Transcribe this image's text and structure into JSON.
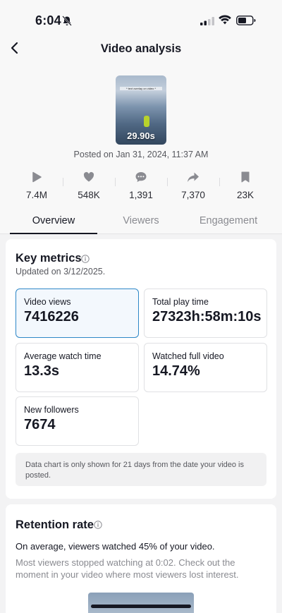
{
  "status_bar": {
    "time": "6:04"
  },
  "nav": {
    "title": "Video analysis"
  },
  "video": {
    "duration": "29.90s",
    "caption": "* text overlay on video *",
    "posted": "Posted on Jan 31, 2024, 11:37 AM"
  },
  "stats": {
    "plays": "7.4M",
    "likes": "548K",
    "comments": "1,391",
    "shares": "7,370",
    "saves": "23K"
  },
  "tabs": [
    "Overview",
    "Viewers",
    "Engagement"
  ],
  "key_metrics": {
    "title": "Key metrics",
    "updated": "Updated on 3/12/2025.",
    "items": [
      {
        "label": "Video views",
        "value": "7416226"
      },
      {
        "label": "Total play time",
        "value": "27323h:58m:10s"
      },
      {
        "label": "Average watch time",
        "value": "13.3s"
      },
      {
        "label": "Watched full video",
        "value": "14.74%"
      },
      {
        "label": "New followers",
        "value": "7674"
      }
    ],
    "note": "Data chart is only shown for 21 days from the date your video is posted."
  },
  "retention": {
    "title": "Retention rate",
    "summary": "On average, viewers watched 45% of your video.",
    "detail": "Most viewers stopped watching at 0:02. Check out the moment in your video where most viewers lost interest."
  },
  "colors": {
    "selected_border": "#2d87c7",
    "text": "#161823",
    "muted": "#8a8b91"
  }
}
